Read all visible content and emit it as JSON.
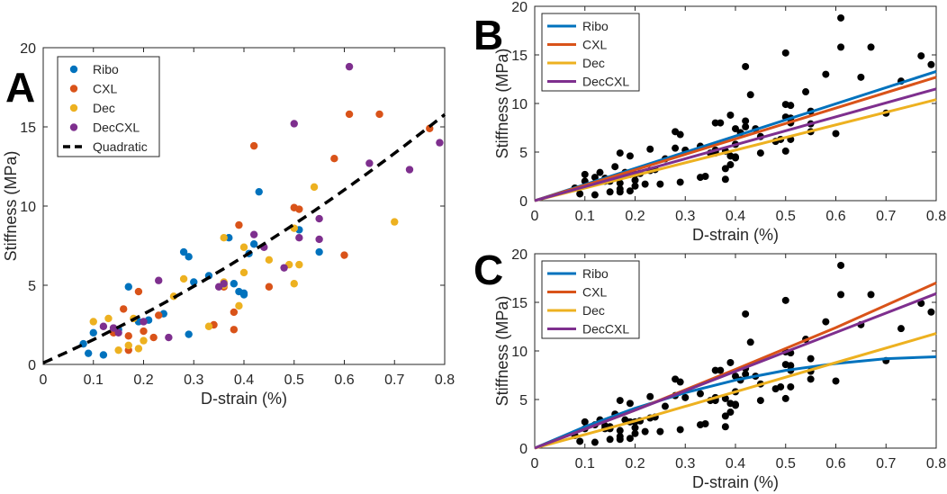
{
  "palette": {
    "Ribo": "#0072BD",
    "CXL": "#D95319",
    "Dec": "#EDB120",
    "DecCXL": "#7E2F8E",
    "points": "#000000",
    "fit": "#000000"
  },
  "chart_data": [
    {
      "panel": "A",
      "type": "scatter",
      "xlabel": "D-strain (%)",
      "ylabel": "Stiffness (MPa)",
      "xlim": [
        0,
        0.8
      ],
      "ylim": [
        0,
        20
      ],
      "xticks": [
        "0",
        "0.1",
        "0.2",
        "0.3",
        "0.4",
        "0.5",
        "0.6",
        "0.7",
        "0.8"
      ],
      "yticks": [
        "0",
        "5",
        "10",
        "15",
        "20"
      ],
      "grid": false,
      "legend": {
        "position": "top-left",
        "entries": [
          {
            "label": "Ribo",
            "kind": "marker",
            "series": "Ribo"
          },
          {
            "label": "CXL",
            "kind": "marker",
            "series": "CXL"
          },
          {
            "label": "Dec",
            "kind": "marker",
            "series": "Dec"
          },
          {
            "label": "DecCXL",
            "kind": "marker",
            "series": "DecCXL"
          },
          {
            "label": "Quadratic",
            "kind": "dashed-line",
            "series": "Quadratic"
          }
        ]
      },
      "series": [
        {
          "name": "Ribo",
          "points": [
            [
              0.08,
              1.3
            ],
            [
              0.09,
              0.7
            ],
            [
              0.1,
              2.0
            ],
            [
              0.12,
              0.6
            ],
            [
              0.15,
              2.2
            ],
            [
              0.17,
              4.9
            ],
            [
              0.19,
              2.7
            ],
            [
              0.21,
              2.8
            ],
            [
              0.24,
              3.2
            ],
            [
              0.28,
              7.1
            ],
            [
              0.29,
              6.8
            ],
            [
              0.29,
              1.9
            ],
            [
              0.3,
              5.2
            ],
            [
              0.33,
              5.6
            ],
            [
              0.37,
              8.0
            ],
            [
              0.38,
              5.1
            ],
            [
              0.39,
              4.6
            ],
            [
              0.4,
              4.4
            ],
            [
              0.4,
              4.5
            ],
            [
              0.41,
              7.0
            ],
            [
              0.42,
              7.6
            ],
            [
              0.43,
              10.9
            ],
            [
              0.51,
              8.5
            ],
            [
              0.55,
              7.1
            ]
          ]
        },
        {
          "name": "CXL",
          "points": [
            [
              0.14,
              2.0
            ],
            [
              0.16,
              3.5
            ],
            [
              0.17,
              0.9
            ],
            [
              0.17,
              1.8
            ],
            [
              0.19,
              4.6
            ],
            [
              0.2,
              2.1
            ],
            [
              0.22,
              1.7
            ],
            [
              0.23,
              3.1
            ],
            [
              0.34,
              2.5
            ],
            [
              0.36,
              4.9
            ],
            [
              0.38,
              2.2
            ],
            [
              0.38,
              3.3
            ],
            [
              0.39,
              8.8
            ],
            [
              0.42,
              13.8
            ],
            [
              0.45,
              4.9
            ],
            [
              0.5,
              9.9
            ],
            [
              0.51,
              9.8
            ],
            [
              0.58,
              13.0
            ],
            [
              0.6,
              6.9
            ],
            [
              0.61,
              15.8
            ],
            [
              0.67,
              15.8
            ],
            [
              0.77,
              14.9
            ]
          ]
        },
        {
          "name": "Dec",
          "points": [
            [
              0.1,
              2.7
            ],
            [
              0.13,
              2.9
            ],
            [
              0.15,
              0.9
            ],
            [
              0.17,
              1.2
            ],
            [
              0.18,
              2.9
            ],
            [
              0.19,
              1.0
            ],
            [
              0.2,
              1.5
            ],
            [
              0.26,
              4.3
            ],
            [
              0.28,
              5.4
            ],
            [
              0.33,
              2.4
            ],
            [
              0.36,
              5.0
            ],
            [
              0.36,
              5.2
            ],
            [
              0.36,
              8.0
            ],
            [
              0.39,
              3.7
            ],
            [
              0.4,
              5.8
            ],
            [
              0.4,
              7.4
            ],
            [
              0.45,
              6.6
            ],
            [
              0.49,
              6.3
            ],
            [
              0.5,
              5.1
            ],
            [
              0.5,
              8.6
            ],
            [
              0.51,
              6.3
            ],
            [
              0.54,
              11.2
            ],
            [
              0.7,
              9.0
            ]
          ]
        },
        {
          "name": "DecCXL",
          "points": [
            [
              0.12,
              2.4
            ],
            [
              0.14,
              2.3
            ],
            [
              0.15,
              2.0
            ],
            [
              0.2,
              2.7
            ],
            [
              0.23,
              5.3
            ],
            [
              0.25,
              1.7
            ],
            [
              0.35,
              4.9
            ],
            [
              0.36,
              5.1
            ],
            [
              0.42,
              8.2
            ],
            [
              0.44,
              7.4
            ],
            [
              0.48,
              6.1
            ],
            [
              0.5,
              15.2
            ],
            [
              0.51,
              8.0
            ],
            [
              0.55,
              9.2
            ],
            [
              0.55,
              7.9
            ],
            [
              0.61,
              18.8
            ],
            [
              0.65,
              12.7
            ],
            [
              0.73,
              12.3
            ],
            [
              0.79,
              14.0
            ]
          ]
        }
      ],
      "fit": {
        "name": "Quadratic",
        "style": "dashed",
        "coefficients": {
          "a": 7.0,
          "b": 14.0,
          "c": 0.1
        }
      }
    },
    {
      "panel": "B",
      "type": "scatter",
      "xlabel": "D-strain (%)",
      "ylabel": "Stiffness (MPa)",
      "xlim": [
        0,
        0.8
      ],
      "ylim": [
        0,
        20
      ],
      "xticks": [
        "0",
        "0.1",
        "0.2",
        "0.3",
        "0.4",
        "0.5",
        "0.6",
        "0.7",
        "0.8"
      ],
      "yticks": [
        "0",
        "5",
        "10",
        "15",
        "20"
      ],
      "grid": false,
      "legend": {
        "position": "top-left",
        "entries": [
          {
            "label": "Ribo",
            "kind": "line",
            "series": "Ribo"
          },
          {
            "label": "CXL",
            "kind": "line",
            "series": "CXL"
          },
          {
            "label": "Dec",
            "kind": "line",
            "series": "Dec"
          },
          {
            "label": "DecCXL",
            "kind": "line",
            "series": "DecCXL"
          }
        ]
      },
      "fits": [
        {
          "name": "Ribo",
          "points": [
            [
              0,
              0
            ],
            [
              0.8,
              13.3
            ]
          ]
        },
        {
          "name": "CXL",
          "points": [
            [
              0,
              0
            ],
            [
              0.8,
              12.7
            ]
          ]
        },
        {
          "name": "Dec",
          "points": [
            [
              0,
              0
            ],
            [
              0.8,
              10.4
            ]
          ]
        },
        {
          "name": "DecCXL",
          "points": [
            [
              0,
              0
            ],
            [
              0.8,
              11.5
            ]
          ]
        }
      ]
    },
    {
      "panel": "C",
      "type": "scatter",
      "xlabel": "D-strain (%)",
      "ylabel": "Stiffness (MPa)",
      "xlim": [
        0,
        0.8
      ],
      "ylim": [
        0,
        20
      ],
      "xticks": [
        "0",
        "0.1",
        "0.2",
        "0.3",
        "0.4",
        "0.5",
        "0.6",
        "0.7",
        "0.8"
      ],
      "yticks": [
        "0",
        "5",
        "10",
        "15",
        "20"
      ],
      "grid": false,
      "legend": {
        "position": "top-left",
        "entries": [
          {
            "label": "Ribo",
            "kind": "line",
            "series": "Ribo"
          },
          {
            "label": "CXL",
            "kind": "line",
            "series": "CXL"
          },
          {
            "label": "Dec",
            "kind": "line",
            "series": "Dec"
          },
          {
            "label": "DecCXL",
            "kind": "line",
            "series": "DecCXL"
          }
        ]
      },
      "fits": [
        {
          "name": "Ribo",
          "points": [
            [
              0,
              0
            ],
            [
              0.1,
              2.2
            ],
            [
              0.2,
              4.1
            ],
            [
              0.3,
              5.7
            ],
            [
              0.4,
              7.0
            ],
            [
              0.5,
              8.0
            ],
            [
              0.6,
              8.7
            ],
            [
              0.7,
              9.2
            ],
            [
              0.8,
              9.4
            ]
          ]
        },
        {
          "name": "CXL",
          "points": [
            [
              0,
              0
            ],
            [
              0.2,
              3.9
            ],
            [
              0.4,
              8.1
            ],
            [
              0.6,
              12.4
            ],
            [
              0.8,
              17.0
            ]
          ]
        },
        {
          "name": "Dec",
          "points": [
            [
              0,
              0
            ],
            [
              0.2,
              2.8
            ],
            [
              0.4,
              5.8
            ],
            [
              0.6,
              8.8
            ],
            [
              0.8,
              11.8
            ]
          ]
        },
        {
          "name": "DecCXL",
          "points": [
            [
              0,
              0
            ],
            [
              0.2,
              3.9
            ],
            [
              0.4,
              7.9
            ],
            [
              0.6,
              11.9
            ],
            [
              0.8,
              15.9
            ]
          ]
        }
      ]
    }
  ],
  "panels": {
    "A": {
      "letter": "A"
    },
    "B": {
      "letter": "B"
    },
    "C": {
      "letter": "C"
    }
  }
}
